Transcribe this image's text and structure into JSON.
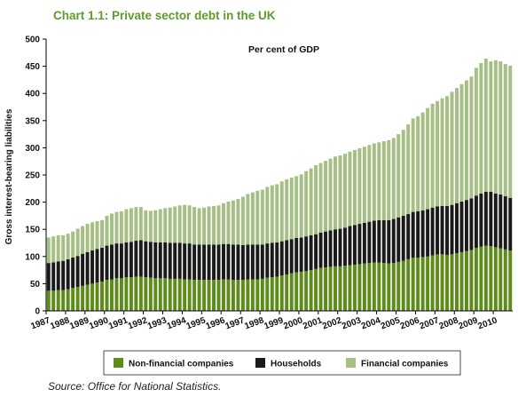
{
  "chart_title": "Chart 1.1: Private sector debt in the UK",
  "source_note": "Source: Office for National Statistics.",
  "chart_data": {
    "type": "bar",
    "stacked": true,
    "title": "Chart 1.1: Private sector debt in the UK",
    "subtitle": "Per cent of GDP",
    "ylabel": "Gross interest-bearing liabilities",
    "xlabel": "",
    "ylim": [
      0,
      500
    ],
    "yticks": [
      0,
      50,
      100,
      150,
      200,
      250,
      300,
      350,
      400,
      450,
      500
    ],
    "grid": false,
    "legend_position": "bottom",
    "year_labels": [
      "1987",
      "1988",
      "1989",
      "1990",
      "1991",
      "1992",
      "1993",
      "1994",
      "1995",
      "1996",
      "1997",
      "1998",
      "1999",
      "2000",
      "2001",
      "2002",
      "2003",
      "2004",
      "2005",
      "2006",
      "2007",
      "2008",
      "2009",
      "2010"
    ],
    "categories": [
      "1987Q1",
      "1987Q2",
      "1987Q3",
      "1987Q4",
      "1988Q1",
      "1988Q2",
      "1988Q3",
      "1988Q4",
      "1989Q1",
      "1989Q2",
      "1989Q3",
      "1989Q4",
      "1990Q1",
      "1990Q2",
      "1990Q3",
      "1990Q4",
      "1991Q1",
      "1991Q2",
      "1991Q3",
      "1991Q4",
      "1992Q1",
      "1992Q2",
      "1992Q3",
      "1992Q4",
      "1993Q1",
      "1993Q2",
      "1993Q3",
      "1993Q4",
      "1994Q1",
      "1994Q2",
      "1994Q3",
      "1994Q4",
      "1995Q1",
      "1995Q2",
      "1995Q3",
      "1995Q4",
      "1996Q1",
      "1996Q2",
      "1996Q3",
      "1996Q4",
      "1997Q1",
      "1997Q2",
      "1997Q3",
      "1997Q4",
      "1998Q1",
      "1998Q2",
      "1998Q3",
      "1998Q4",
      "1999Q1",
      "1999Q2",
      "1999Q3",
      "1999Q4",
      "2000Q1",
      "2000Q2",
      "2000Q3",
      "2000Q4",
      "2001Q1",
      "2001Q2",
      "2001Q3",
      "2001Q4",
      "2002Q1",
      "2002Q2",
      "2002Q3",
      "2002Q4",
      "2003Q1",
      "2003Q2",
      "2003Q3",
      "2003Q4",
      "2004Q1",
      "2004Q2",
      "2004Q3",
      "2004Q4",
      "2005Q1",
      "2005Q2",
      "2005Q3",
      "2005Q4",
      "2006Q1",
      "2006Q2",
      "2006Q3",
      "2006Q4",
      "2007Q1",
      "2007Q2",
      "2007Q3",
      "2007Q4",
      "2008Q1",
      "2008Q2",
      "2008Q3",
      "2008Q4",
      "2009Q1",
      "2009Q2",
      "2009Q3",
      "2009Q4",
      "2010Q1",
      "2010Q2",
      "2010Q3",
      "2010Q4"
    ],
    "series": [
      {
        "name": "Non-financial companies",
        "color": "#5e8c1b",
        "values": [
          37,
          37,
          38,
          38,
          40,
          42,
          44,
          46,
          48,
          50,
          52,
          54,
          57,
          58,
          60,
          60,
          62,
          62,
          63,
          63,
          62,
          61,
          60,
          60,
          60,
          59,
          59,
          59,
          58,
          58,
          57,
          57,
          57,
          57,
          57,
          57,
          58,
          58,
          57,
          57,
          57,
          58,
          58,
          58,
          59,
          61,
          62,
          63,
          65,
          67,
          69,
          71,
          72,
          73,
          75,
          77,
          79,
          80,
          81,
          82,
          82,
          83,
          84,
          85,
          86,
          87,
          88,
          89,
          89,
          88,
          87,
          88,
          90,
          92,
          95,
          98,
          98,
          99,
          100,
          102,
          104,
          104,
          103,
          104,
          106,
          108,
          110,
          112,
          116,
          118,
          120,
          119,
          117,
          115,
          113,
          111
        ]
      },
      {
        "name": "Households",
        "color": "#1a1a1a",
        "values": [
          51,
          52,
          53,
          54,
          55,
          56,
          57,
          59,
          60,
          61,
          62,
          62,
          63,
          64,
          64,
          64,
          64,
          65,
          66,
          67,
          66,
          66,
          66,
          66,
          66,
          66,
          66,
          66,
          66,
          66,
          65,
          65,
          65,
          65,
          65,
          65,
          65,
          65,
          65,
          65,
          64,
          64,
          64,
          64,
          63,
          63,
          63,
          63,
          63,
          63,
          63,
          63,
          63,
          64,
          64,
          64,
          65,
          66,
          67,
          68,
          69,
          70,
          72,
          73,
          74,
          75,
          76,
          77,
          78,
          79,
          80,
          81,
          82,
          83,
          83,
          84,
          85,
          86,
          87,
          88,
          88,
          89,
          90,
          91,
          92,
          93,
          94,
          95,
          96,
          98,
          99,
          100,
          99,
          99,
          98,
          97
        ]
      },
      {
        "name": "Financial companies",
        "color": "#a6bf84",
        "values": [
          47,
          48,
          48,
          47,
          47,
          48,
          50,
          51,
          52,
          52,
          51,
          51,
          55,
          57,
          58,
          59,
          61,
          62,
          62,
          61,
          57,
          57,
          59,
          61,
          63,
          65,
          67,
          69,
          71,
          70,
          69,
          67,
          68,
          70,
          71,
          72,
          75,
          78,
          81,
          84,
          89,
          93,
          96,
          99,
          101,
          104,
          106,
          107,
          110,
          112,
          113,
          114,
          116,
          120,
          123,
          127,
          128,
          130,
          132,
          134,
          135,
          136,
          137,
          138,
          139,
          140,
          141,
          142,
          143,
          145,
          147,
          149,
          153,
          158,
          165,
          172,
          175,
          180,
          186,
          191,
          194,
          198,
          202,
          208,
          212,
          216,
          220,
          224,
          235,
          240,
          245,
          240,
          245,
          245,
          243,
          243
        ]
      }
    ]
  }
}
